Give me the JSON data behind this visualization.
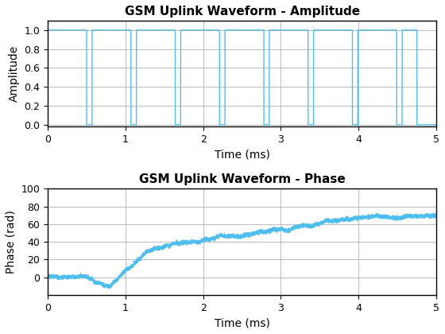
{
  "title_amp": "GSM Uplink Waveform - Amplitude",
  "title_phase": "GSM Uplink Waveform - Phase",
  "xlabel": "Time (ms)",
  "ylabel_amp": "Amplitude",
  "ylabel_phase": "Phase (rad)",
  "xlim": [
    0,
    5
  ],
  "ylim_amp": [
    -0.02,
    1.1
  ],
  "ylim_phase": [
    -20,
    100
  ],
  "yticks_amp": [
    0,
    0.2,
    0.4,
    0.6,
    0.8,
    1.0
  ],
  "yticks_phase": [
    0,
    20,
    40,
    60,
    80,
    100
  ],
  "xticks": [
    0,
    1,
    2,
    3,
    4,
    5
  ],
  "line_color": "#4DBEEE",
  "bg_color": "#ffffff",
  "grid_color": "#b0b0b0",
  "burst_intervals": [
    [
      0.0,
      0.5
    ],
    [
      0.57,
      1.07
    ],
    [
      1.14,
      1.64
    ],
    [
      1.71,
      2.21
    ],
    [
      2.28,
      2.78
    ],
    [
      2.85,
      3.35
    ],
    [
      3.42,
      3.92
    ],
    [
      3.99,
      4.49
    ],
    [
      4.56,
      4.75
    ]
  ]
}
